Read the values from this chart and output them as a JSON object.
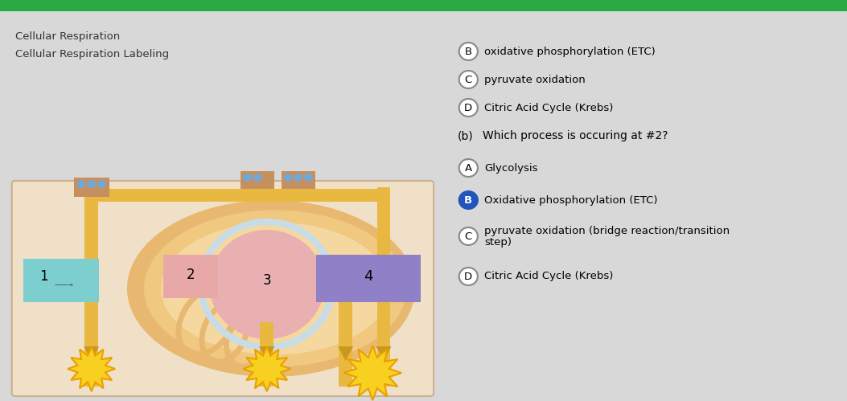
{
  "bg_color": "#d8d8d8",
  "left_panel_bg": "#d8d8d8",
  "right_panel_bg": "#d8d8d8",
  "title1": "Cellular Respiration",
  "title2": "Cellular Respiration Labeling",
  "question_b": "(b)   Which process is occuring at #2?",
  "options_top": [
    {
      "letter": "B",
      "text": "oxidative phosphorylation (ETC)",
      "filled": false
    },
    {
      "letter": "C",
      "text": "pyruvate oxidation",
      "filled": false
    },
    {
      "letter": "D",
      "text": "Citric Acid Cycle (Krebs)",
      "filled": false
    }
  ],
  "options_bottom": [
    {
      "letter": "A",
      "text": "Glycolysis",
      "filled": false
    },
    {
      "letter": "B",
      "text": "Oxidative phosphorylation (ETC)",
      "filled": true
    },
    {
      "letter": "C",
      "text": "pyruvate oxidation (bridge reaction/transition\nstep)",
      "filled": false
    },
    {
      "letter": "D",
      "text": "Citric Acid Cycle (Krebs)",
      "filled": false
    }
  ],
  "box1_color": "#7dcfcf",
  "box2_color": "#e8a8a8",
  "box4_color": "#9080c8",
  "pipe_color": "#e8b840",
  "pipe_dark": "#c89820",
  "mito_outer": "#e8b870",
  "mito_mid": "#f0c880",
  "mito_light": "#f5d8a0",
  "matrix_color": "#e8b0b0",
  "cristae_color": "#c8dce8",
  "diagram_bg": "#f0e0c8",
  "green_bar": "#2aaa42",
  "starburst_color": "#f8d020",
  "starburst_edge": "#e8a000"
}
